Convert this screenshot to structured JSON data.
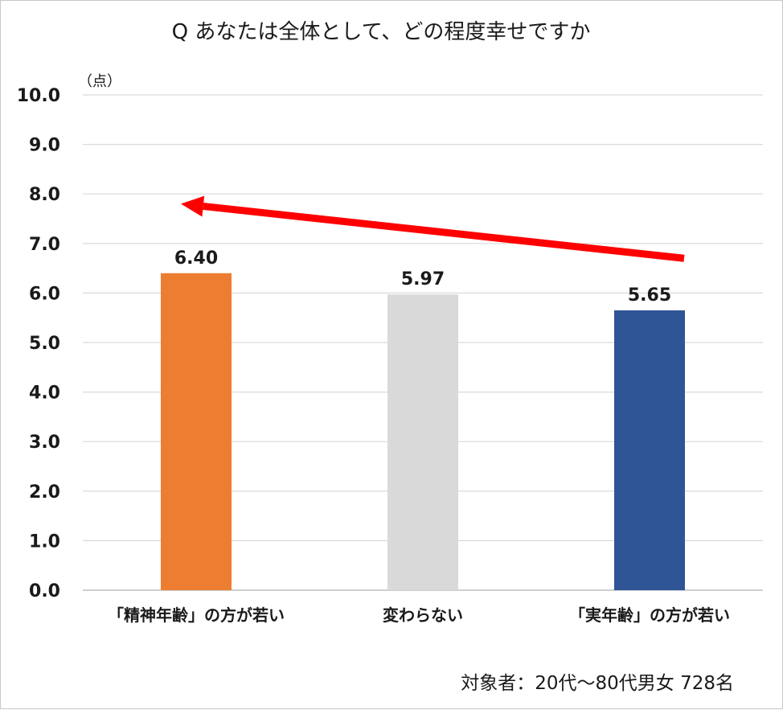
{
  "chart_data": {
    "type": "bar",
    "title": "Q あなたは全体として、どの程度幸せですか",
    "unit_label": "（点）",
    "categories": [
      "「精神年齢」の方が若い",
      "変わらない",
      "「実年齢」の方が若い"
    ],
    "values": [
      6.4,
      5.97,
      5.65
    ],
    "value_labels": [
      "6.40",
      "5.97",
      "5.65"
    ],
    "bar_colors": [
      "#ED7D31",
      "#D9D9D9",
      "#2F5597"
    ],
    "ylim": [
      0,
      10
    ],
    "yticks": [
      "0.0",
      "1.0",
      "2.0",
      "3.0",
      "4.0",
      "5.0",
      "6.0",
      "7.0",
      "8.0",
      "9.0",
      "10.0"
    ],
    "grid": true,
    "annotation": {
      "type": "arrow",
      "color": "#FF0000",
      "from": {
        "category_index": 2,
        "value": 6.7
      },
      "to": {
        "category_index": 0,
        "value": 7.8
      }
    },
    "footnote": "対象者：20代～80代男女 728名"
  }
}
